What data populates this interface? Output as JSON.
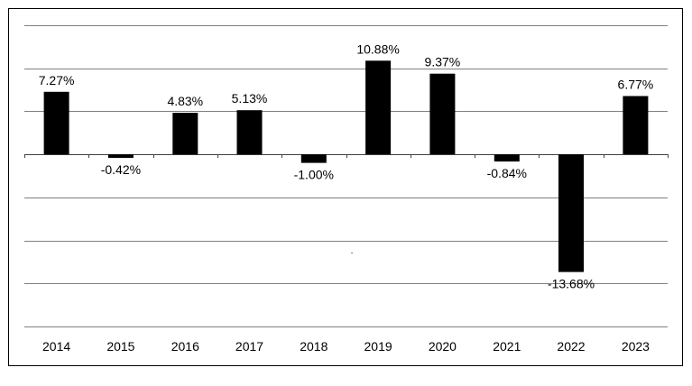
{
  "chart_data": {
    "type": "bar",
    "title": "",
    "xlabel": "",
    "ylabel": "",
    "categories": [
      "2014",
      "2015",
      "2016",
      "2017",
      "2018",
      "2019",
      "2020",
      "2021",
      "2022",
      "2023"
    ],
    "series": [
      {
        "values": [
          7.27,
          -0.42,
          4.83,
          5.13,
          -1.0,
          10.88,
          9.37,
          -0.84,
          -13.68,
          6.77
        ],
        "labels": [
          "7.27%",
          "-0.42%",
          "4.83%",
          "5.13%",
          "-1.00%",
          "10.88%",
          "9.37%",
          "-0.84%",
          "-13.68%",
          "6.77%"
        ]
      }
    ],
    "ylim": [
      -20,
      15
    ],
    "gridlines": [
      -20,
      -15,
      -10,
      -5,
      0,
      5,
      10,
      15
    ],
    "grid": true,
    "legend": "none",
    "show_y_tick_labels": false,
    "bar_color": "#000000",
    "grid_color": "#808080"
  },
  "annotations": {
    "stray_mark": "·"
  }
}
